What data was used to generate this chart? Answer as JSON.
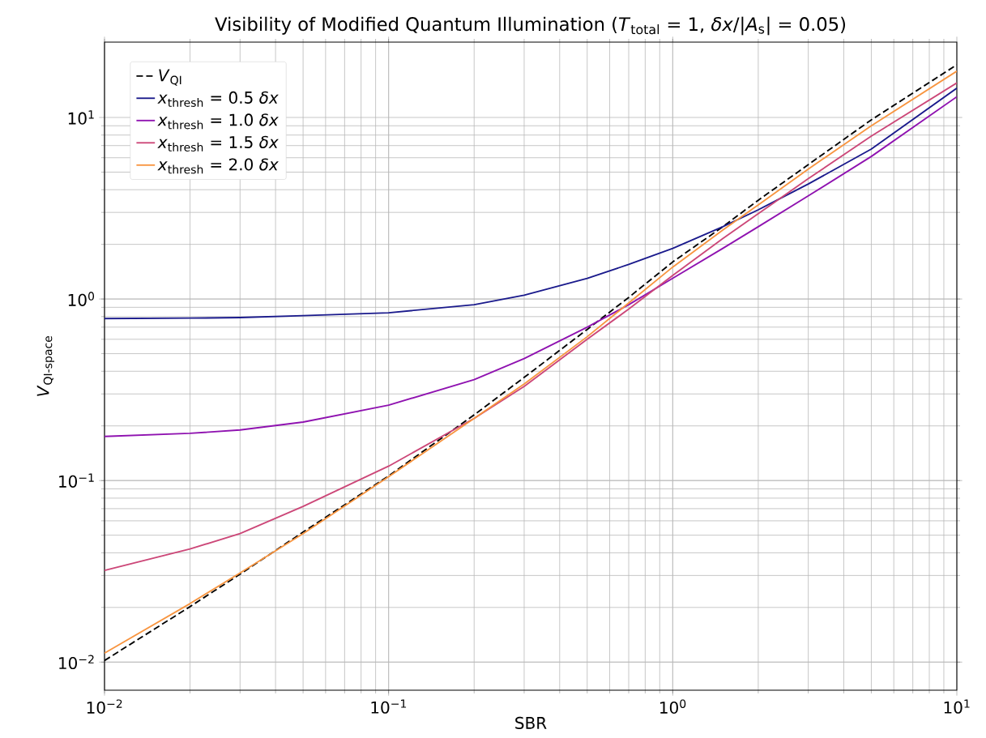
{
  "chart_data": {
    "type": "line",
    "title": "Visibility of Modified Quantum Illumination (*T*$_{total}$ = 1, *δx*/|*A*$_{s}$| = 0.05)",
    "xlabel": "SBR",
    "ylabel": "*V*$_{QI-space}$",
    "log": "xy",
    "grid": true,
    "legend": "top left",
    "xlim": [
      0.01,
      10
    ],
    "ylim": [
      0.007,
      26
    ],
    "xticks": [
      {
        "value": 0.01,
        "label": "10$^{−2}$"
      },
      {
        "value": 0.1,
        "label": "10$^{−1}$"
      },
      {
        "value": 1,
        "label": "10$^{0}$"
      },
      {
        "value": 10,
        "label": "10$^{1}$"
      }
    ],
    "yticks": [
      {
        "value": 0.01,
        "label": "10$^{−2}$"
      },
      {
        "value": 0.1,
        "label": "10$^{−1}$"
      },
      {
        "value": 1,
        "label": "10$^{0}$"
      },
      {
        "value": 10,
        "label": "10$^{1}$"
      }
    ],
    "x": [
      0.01,
      0.02,
      0.03,
      0.05,
      0.1,
      0.2,
      0.3,
      0.5,
      0.7,
      1,
      1.5,
      2,
      3,
      5,
      10
    ],
    "series": [
      {
        "name": "*V*$_{QI}$",
        "color": "#000000",
        "line_style": "dashed",
        "values": [
          0.0102,
          0.0202,
          0.0305,
          0.052,
          0.106,
          0.23,
          0.37,
          0.68,
          1.02,
          1.6,
          2.5,
          3.5,
          5.5,
          9.7,
          19.5
        ]
      },
      {
        "name": "*x*$_{thresh}$ = 0.5 *δx*",
        "color": "#1a1a8c",
        "values": [
          0.78,
          0.785,
          0.79,
          0.81,
          0.84,
          0.93,
          1.05,
          1.3,
          1.55,
          1.9,
          2.5,
          3.1,
          4.3,
          6.7,
          14.5
        ]
      },
      {
        "name": "*x*$_{thresh}$ = 1.0 *δx*",
        "color": "#8f12b0",
        "values": [
          0.175,
          0.182,
          0.19,
          0.21,
          0.26,
          0.36,
          0.47,
          0.7,
          0.93,
          1.3,
          1.9,
          2.5,
          3.7,
          6.1,
          13
        ]
      },
      {
        "name": "*x*$_{thresh}$ = 1.5 *δx*",
        "color": "#cc4778",
        "values": [
          0.032,
          0.042,
          0.051,
          0.072,
          0.12,
          0.22,
          0.33,
          0.6,
          0.88,
          1.35,
          2.15,
          2.95,
          4.6,
          7.9,
          15.5
        ]
      },
      {
        "name": "*x*$_{thresh}$ = 2.0 *δx*",
        "color": "#f89540",
        "values": [
          0.0112,
          0.021,
          0.031,
          0.051,
          0.105,
          0.22,
          0.34,
          0.62,
          0.95,
          1.5,
          2.4,
          3.3,
          5.2,
          9.0,
          18
        ]
      }
    ]
  }
}
